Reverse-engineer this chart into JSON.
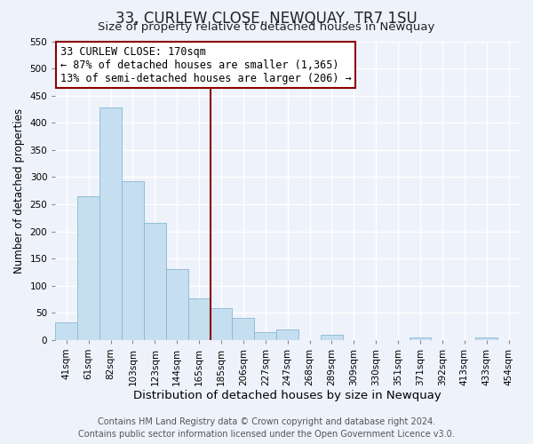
{
  "title": "33, CURLEW CLOSE, NEWQUAY, TR7 1SU",
  "subtitle": "Size of property relative to detached houses in Newquay",
  "xlabel": "Distribution of detached houses by size in Newquay",
  "ylabel": "Number of detached properties",
  "bar_labels": [
    "41sqm",
    "61sqm",
    "82sqm",
    "103sqm",
    "123sqm",
    "144sqm",
    "165sqm",
    "185sqm",
    "206sqm",
    "227sqm",
    "247sqm",
    "268sqm",
    "289sqm",
    "309sqm",
    "330sqm",
    "351sqm",
    "371sqm",
    "392sqm",
    "413sqm",
    "433sqm",
    "454sqm"
  ],
  "bar_values": [
    32,
    265,
    428,
    292,
    215,
    130,
    76,
    58,
    40,
    15,
    20,
    0,
    10,
    0,
    0,
    0,
    5,
    0,
    0,
    5,
    0
  ],
  "bar_color": "#c5dff0",
  "bar_edge_color": "#8ab8d4",
  "background_color": "#eef2fb",
  "grid_color": "#ffffff",
  "vline_color": "#8b0000",
  "vline_x_index": 6.5,
  "annotation_title": "33 CURLEW CLOSE: 170sqm",
  "annotation_line1": "← 87% of detached houses are smaller (1,365)",
  "annotation_line2": "13% of semi-detached houses are larger (206) →",
  "annotation_box_color": "#ffffff",
  "annotation_box_edge": "#8b0000",
  "ylim": [
    0,
    550
  ],
  "yticks": [
    0,
    50,
    100,
    150,
    200,
    250,
    300,
    350,
    400,
    450,
    500,
    550
  ],
  "footer_line1": "Contains HM Land Registry data © Crown copyright and database right 2024.",
  "footer_line2": "Contains public sector information licensed under the Open Government Licence v3.0.",
  "title_fontsize": 12,
  "subtitle_fontsize": 9.5,
  "xlabel_fontsize": 9.5,
  "ylabel_fontsize": 8.5,
  "tick_fontsize": 7.5,
  "footer_fontsize": 7,
  "annotation_fontsize": 8.5
}
